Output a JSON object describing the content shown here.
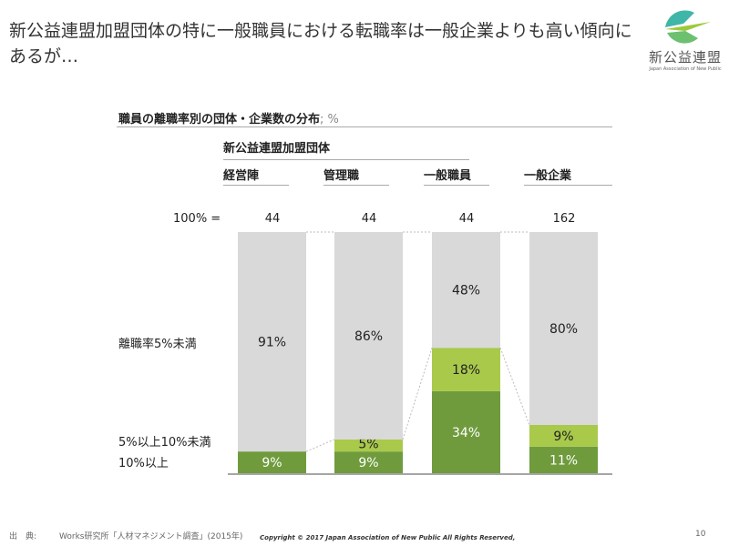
{
  "title": "新公益連盟加盟団体の特に一般職員における転職率は一般企業よりも高い傾向にあるが…",
  "logo": {
    "text": "新公益連盟",
    "sub": "Japan Association of New Public"
  },
  "colors": {
    "gray": "#d9d9d9",
    "dark_green": "#6f9b3d",
    "light_green": "#a9c94b"
  },
  "chart_data": {
    "type": "bar",
    "stacked": true,
    "normalized": true,
    "title": "職員の離職率別の団体・企業数の分布",
    "unit": "; %",
    "group_label": "新公益連盟加盟団体",
    "total_prefix": "100% =",
    "categories": [
      "経営陣",
      "管理職",
      "一般職員",
      "一般企業"
    ],
    "totals": [
      "44",
      "44",
      "44",
      "162"
    ],
    "series": [
      {
        "name": "10%以上",
        "values": [
          9,
          9,
          34,
          11
        ]
      },
      {
        "name": "5%以上10%未満",
        "values": [
          0,
          5,
          18,
          9
        ]
      },
      {
        "name": "離職率5%未満",
        "values": [
          91,
          86,
          48,
          80
        ]
      }
    ]
  },
  "footer": {
    "source_label": "出　典:",
    "source": "Works研究所「人材マネジメント調査」(2015年)",
    "copyright": "Copyright © 2017 Japan Association of New Public All Rights Reserved,",
    "page": "10"
  }
}
